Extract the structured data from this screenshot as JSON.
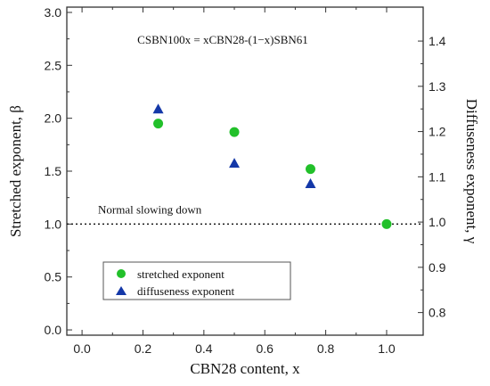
{
  "chart_data": {
    "type": "scatter",
    "title": "CSBN100x = xCBN28-(1−x)SBN61",
    "xlabel": "CBN28 content, x",
    "ylabel_left": "Stretched exponent, β",
    "ylabel_right": "Diffuseness exponent, γ",
    "xlim": [
      -0.05,
      1.12
    ],
    "ylim_left": [
      -0.05,
      3.05
    ],
    "ylim_right": [
      0.75,
      1.475
    ],
    "x_ticks": [
      "0.0",
      "0.2",
      "0.4",
      "0.6",
      "0.8",
      "1.0"
    ],
    "y_left_ticks": [
      "0.0",
      "0.5",
      "1.0",
      "1.5",
      "2.0",
      "2.5",
      "3.0"
    ],
    "y_right_ticks": [
      "0.8",
      "0.9",
      "1.0",
      "1.1",
      "1.2",
      "1.3",
      "1.4"
    ],
    "series": [
      {
        "name": "stretched exponent",
        "axis": "left",
        "marker": "circle",
        "color": "#22c02a",
        "x": [
          0.25,
          0.5,
          0.75,
          1.0
        ],
        "y": [
          1.95,
          1.87,
          1.52,
          1.0
        ]
      },
      {
        "name": "diffuseness exponent",
        "axis": "right",
        "marker": "triangle",
        "color": "#1438a8",
        "x": [
          0.25,
          0.5,
          0.75
        ],
        "y": [
          1.25,
          1.13,
          1.085
        ]
      }
    ],
    "reference_line": {
      "y": 1.0,
      "axis": "left",
      "style": "dotted",
      "label": "Normal slowing down"
    },
    "legend": {
      "placement": "lower-left",
      "boxed": true
    },
    "grid": false
  }
}
